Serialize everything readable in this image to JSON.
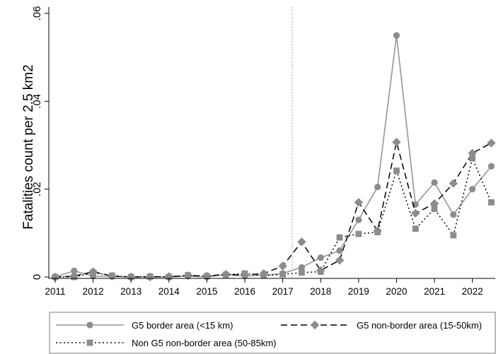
{
  "chart_data": {
    "type": "line",
    "title": "",
    "xlabel": "",
    "ylabel": "Fatalities count per 2.5 km2",
    "xlim": [
      2010.95,
      2022.5
    ],
    "ylim": [
      0,
      0.06
    ],
    "x_ticks": [
      2011,
      2012,
      2013,
      2014,
      2015,
      2016,
      2017,
      2018,
      2019,
      2020,
      2021,
      2022
    ],
    "x_tick_labels": [
      "2011",
      "2012",
      "2013",
      "2014",
      "2015",
      "2016",
      "2017",
      "2018",
      "2019",
      "2020",
      "2021",
      "2022"
    ],
    "y_ticks": [
      0,
      0.02,
      0.04,
      0.06
    ],
    "y_tick_labels": [
      "0",
      ".02",
      ".04",
      ".06"
    ],
    "reference_line_x": 2017.25,
    "grid": false,
    "legend_position": "bottom",
    "x": [
      2011,
      2011.5,
      2012,
      2012.5,
      2013,
      2013.5,
      2014,
      2014.5,
      2015,
      2015.5,
      2016,
      2016.5,
      2017,
      2017.5,
      2018,
      2018.5,
      2019,
      2019.5,
      2020,
      2020.5,
      2021,
      2021.5,
      2022,
      2022.5
    ],
    "series": [
      {
        "name": "G5 border area (<15 km)",
        "color": "#969696",
        "style": "solid",
        "marker": "circle",
        "values": [
          0,
          0.0014,
          0.0002,
          0.0001,
          0,
          0.0001,
          0,
          0.0002,
          0,
          0.0006,
          0.0002,
          0.0004,
          0.0008,
          0.0022,
          0.0044,
          0.006,
          0.013,
          0.0205,
          0.055,
          0.0165,
          0.0215,
          0.0142,
          0.02,
          0.0252
        ]
      },
      {
        "name": "G5 non-border area (15-50km)",
        "color": "#000000",
        "style": "dashed",
        "marker": "diamond",
        "values": [
          0,
          0.0002,
          0.0012,
          0.0002,
          0,
          0,
          0.0001,
          0.0003,
          0.0002,
          0.0006,
          0.0004,
          0.0008,
          0.0025,
          0.008,
          0.0015,
          0.0038,
          0.017,
          0.0105,
          0.0307,
          0.0145,
          0.0167,
          0.0213,
          0.0282,
          0.0305
        ]
      },
      {
        "name": "Non G5 non-border area (50-85km)",
        "color": "#000000",
        "style": "dotted",
        "marker": "square",
        "values": [
          0,
          0,
          0.001,
          0.0003,
          0,
          0.0001,
          0,
          0.0004,
          0.0002,
          0.0005,
          0.0008,
          0.0003,
          0.0006,
          0.001,
          0.0012,
          0.009,
          0.0098,
          0.0102,
          0.0242,
          0.011,
          0.0155,
          0.0095,
          0.027,
          0.017
        ]
      }
    ]
  },
  "colors": {
    "series_line_gray": "#969696",
    "marker_fill": "#8c8c8c",
    "axis": "#000000",
    "reference_line": "#8c8c8c"
  }
}
